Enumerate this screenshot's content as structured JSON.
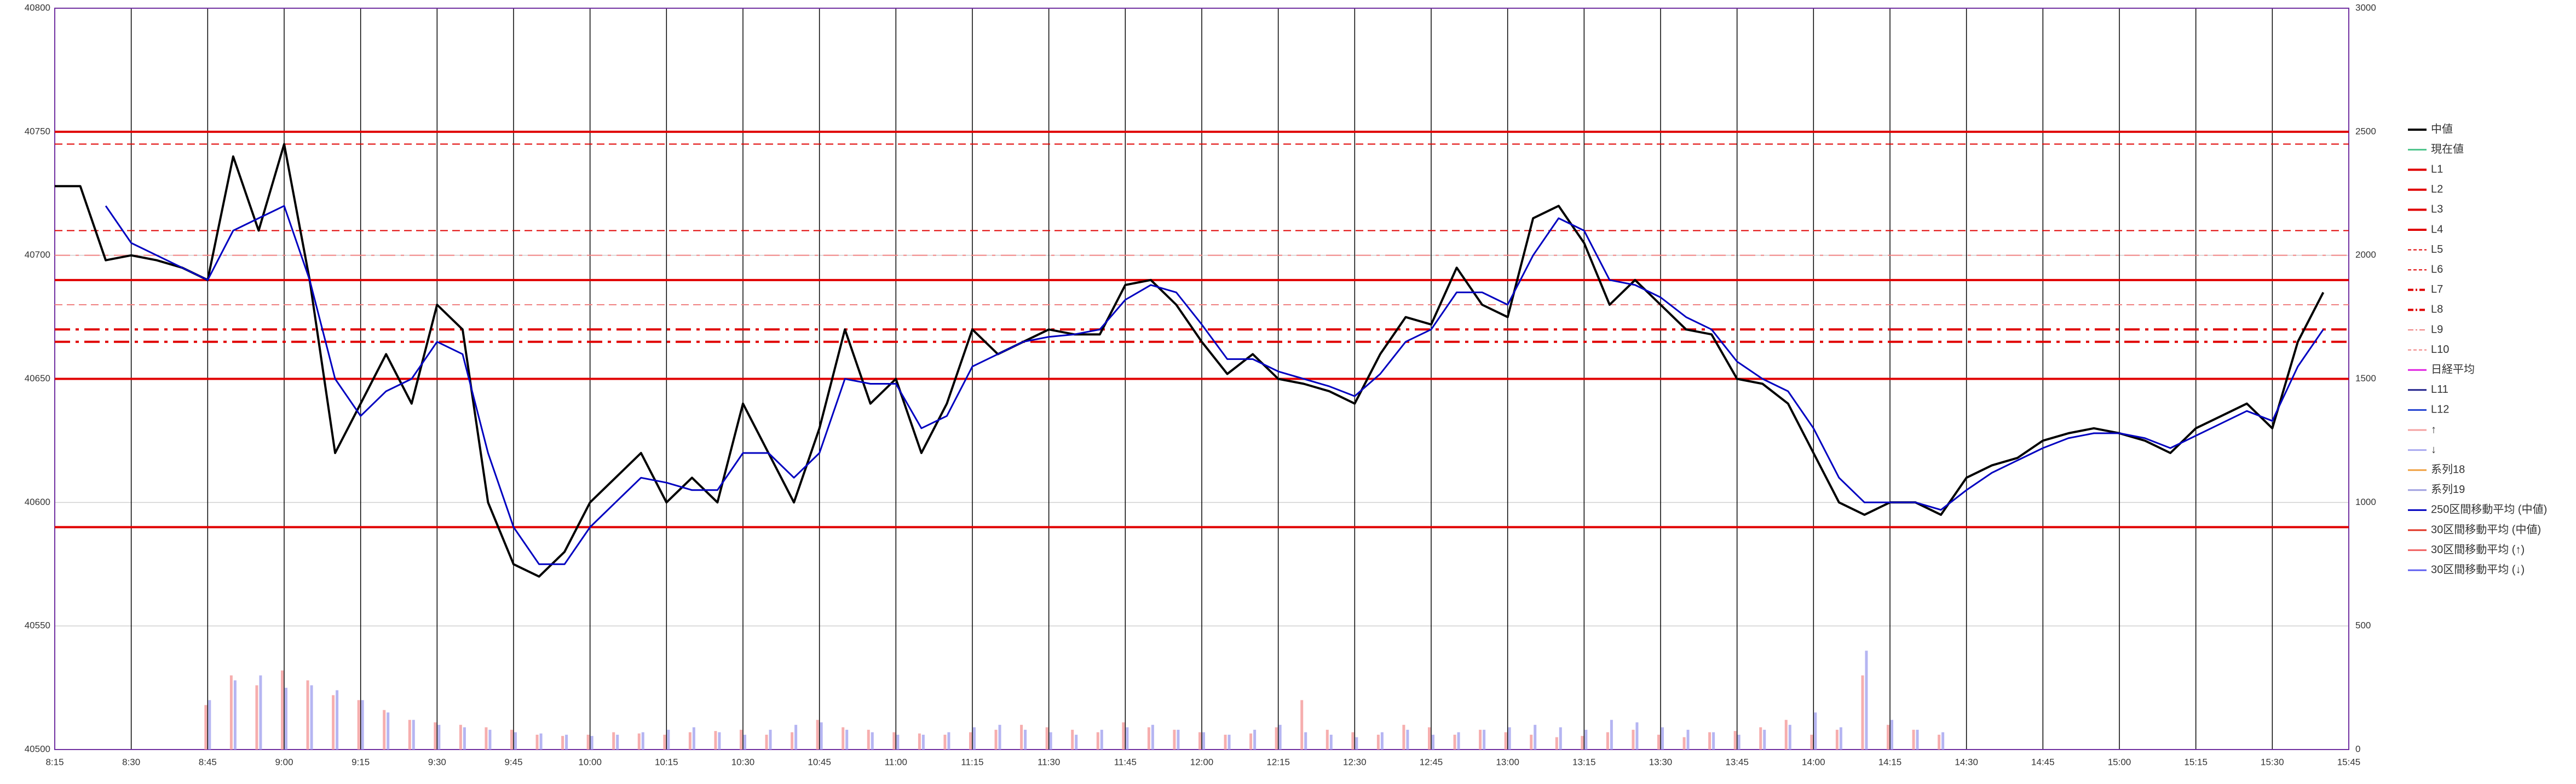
{
  "chart_data": {
    "type": "line",
    "x": [
      "8:15",
      "8:20",
      "8:25",
      "8:30",
      "8:35",
      "8:40",
      "8:45",
      "8:50",
      "8:55",
      "9:00",
      "9:05",
      "9:10",
      "9:15",
      "9:20",
      "9:25",
      "9:30",
      "9:35",
      "9:40",
      "9:45",
      "9:50",
      "9:55",
      "10:00",
      "10:05",
      "10:10",
      "10:15",
      "10:20",
      "10:25",
      "10:30",
      "10:35",
      "10:40",
      "10:45",
      "10:50",
      "10:55",
      "11:00",
      "11:05",
      "11:10",
      "11:15",
      "11:20",
      "11:25",
      "11:30",
      "11:35",
      "11:40",
      "11:45",
      "11:50",
      "11:55",
      "12:00",
      "12:05",
      "12:10",
      "12:15",
      "12:20",
      "12:25",
      "12:30",
      "12:35",
      "12:40",
      "12:45",
      "12:50",
      "12:55",
      "13:00",
      "13:05",
      "13:10",
      "13:15",
      "13:20",
      "13:25",
      "13:30",
      "13:35",
      "13:40",
      "13:45",
      "13:50",
      "13:55",
      "14:00",
      "14:05",
      "14:10",
      "14:15",
      "14:20",
      "14:25",
      "14:30",
      "14:35",
      "14:40",
      "14:45",
      "14:50",
      "14:55",
      "15:00",
      "15:05",
      "15:10",
      "15:15",
      "15:20",
      "15:25",
      "15:30",
      "15:35",
      "15:40",
      "15:45"
    ],
    "ylim": [
      40500,
      40800
    ],
    "yticks": [
      40500,
      40550,
      40600,
      40650,
      40700,
      40750,
      40800
    ],
    "y2lim": [
      0,
      3000
    ],
    "y2ticks": [
      0,
      500,
      1000,
      1500,
      2000,
      2500,
      3000
    ],
    "grid": true,
    "series": [
      {
        "name": "中値",
        "color": "#000000",
        "kind": "line",
        "width": 4,
        "values": [
          40728,
          40728,
          40698,
          40700,
          40698,
          40695,
          40690,
          40740,
          40710,
          40745,
          40690,
          40620,
          40640,
          40660,
          40640,
          40680,
          40670,
          40600,
          40575,
          40570,
          40580,
          40600,
          40610,
          40620,
          40600,
          40610,
          40600,
          40640,
          40620,
          40600,
          40630,
          40670,
          40640,
          40650,
          40620,
          40640,
          40670,
          40660,
          40665,
          40670,
          40668,
          40668,
          40688,
          40690,
          40680,
          40665,
          40652,
          40660,
          40650,
          40648,
          40645,
          40640,
          40660,
          40675,
          40672,
          40695,
          40680,
          40675,
          40715,
          40720,
          40705,
          40680,
          40690,
          40680,
          40670,
          40668,
          40650,
          40648,
          40640,
          40620,
          40600,
          40595,
          40600,
          40600,
          40595,
          40610,
          40615,
          40618,
          40625,
          40628,
          40630,
          40628,
          40625,
          40620,
          40630,
          40635,
          40640,
          40630,
          40665,
          40685,
          null
        ]
      },
      {
        "name": "現在値",
        "color": "#4cc38a",
        "kind": "line"
      },
      {
        "name": "L1",
        "color": "#e00000",
        "kind": "level",
        "level": 40750,
        "width": 4
      },
      {
        "name": "L2",
        "color": "#e00000",
        "kind": "level",
        "level": 40690,
        "width": 4
      },
      {
        "name": "L3",
        "color": "#e00000",
        "kind": "level",
        "level": 40650,
        "width": 4
      },
      {
        "name": "L4",
        "color": "#e00000",
        "kind": "level",
        "level": 40590,
        "width": 4
      },
      {
        "name": "L5",
        "color": "#e00000",
        "kind": "level",
        "level": 40745,
        "width": 2,
        "dash": "dashed"
      },
      {
        "name": "L6",
        "color": "#e00000",
        "kind": "level",
        "level": 40710,
        "width": 2,
        "dash": "dashed"
      },
      {
        "name": "L7",
        "color": "#e00000",
        "kind": "level",
        "level": 40670,
        "width": 4,
        "dash": "dashdot"
      },
      {
        "name": "L8",
        "color": "#e00000",
        "kind": "level",
        "level": 40665,
        "width": 4,
        "dash": "dashdot"
      },
      {
        "name": "L9",
        "color": "#f08080",
        "kind": "level",
        "level": 40700,
        "width": 2,
        "dash": "dashdot"
      },
      {
        "name": "L10",
        "color": "#f08080",
        "kind": "level",
        "level": 40680,
        "width": 2,
        "dash": "dashed"
      },
      {
        "name": "日経平均",
        "color": "#e020e0",
        "kind": "line"
      },
      {
        "name": "L11",
        "color": "#20208a",
        "kind": "level"
      },
      {
        "name": "L12",
        "color": "#2040d0",
        "kind": "level"
      },
      {
        "name": "↑",
        "color": "#f4a0a0",
        "kind": "bar",
        "axis": "y2",
        "values": [
          null,
          null,
          null,
          null,
          null,
          null,
          180,
          300,
          260,
          320,
          280,
          220,
          200,
          160,
          120,
          110,
          100,
          90,
          80,
          60,
          55,
          60,
          70,
          65,
          60,
          70,
          75,
          80,
          60,
          70,
          120,
          90,
          80,
          70,
          65,
          60,
          70,
          80,
          100,
          90,
          80,
          70,
          110,
          90,
          80,
          70,
          60,
          65,
          90,
          200,
          80,
          70,
          60,
          100,
          90,
          60,
          80,
          70,
          60,
          50,
          55,
          70,
          80,
          60,
          50,
          70,
          75,
          90,
          120,
          60,
          80,
          300,
          100,
          80,
          60,
          null,
          null,
          null,
          null,
          null,
          null,
          null,
          null,
          null,
          null,
          null,
          null,
          null,
          null,
          null,
          null
        ]
      },
      {
        "name": "↓",
        "color": "#a8a8f0",
        "kind": "bar",
        "axis": "y2",
        "values": [
          null,
          null,
          null,
          null,
          null,
          null,
          200,
          280,
          300,
          250,
          260,
          240,
          200,
          150,
          120,
          100,
          90,
          80,
          70,
          65,
          60,
          55,
          60,
          70,
          80,
          90,
          70,
          60,
          80,
          100,
          110,
          80,
          70,
          60,
          60,
          70,
          90,
          100,
          80,
          70,
          60,
          80,
          90,
          100,
          80,
          70,
          60,
          80,
          100,
          70,
          60,
          50,
          70,
          80,
          60,
          70,
          80,
          90,
          100,
          90,
          80,
          120,
          110,
          90,
          80,
          70,
          60,
          80,
          100,
          150,
          90,
          400,
          120,
          80,
          70,
          null,
          null,
          null,
          null,
          null,
          null,
          null,
          null,
          null,
          null,
          null,
          null,
          null,
          null,
          null,
          null
        ]
      },
      {
        "name": "系列18",
        "color": "#f0a040",
        "kind": "line"
      },
      {
        "name": "系列19",
        "color": "#a0a0e0",
        "kind": "line"
      },
      {
        "name": "250区間移動平均 (中値)",
        "color": "#0000c0",
        "kind": "line",
        "width": 3,
        "values": [
          null,
          null,
          40720,
          40705,
          40700,
          40695,
          40690,
          40710,
          40715,
          40720,
          40690,
          40650,
          40635,
          40645,
          40650,
          40665,
          40660,
          40620,
          40590,
          40575,
          40575,
          40590,
          40600,
          40610,
          40608,
          40605,
          40605,
          40620,
          40620,
          40610,
          40620,
          40650,
          40648,
          40648,
          40630,
          40635,
          40655,
          40660,
          40665,
          40667,
          40668,
          40670,
          40682,
          40688,
          40685,
          40672,
          40658,
          40658,
          40653,
          40650,
          40647,
          40643,
          40652,
          40665,
          40670,
          40685,
          40685,
          40680,
          40700,
          40715,
          40710,
          40690,
          40688,
          40683,
          40675,
          40670,
          40657,
          40650,
          40645,
          40630,
          40610,
          40600,
          40600,
          40600,
          40597,
          40605,
          40612,
          40617,
          40622,
          40626,
          40628,
          40628,
          40626,
          40622,
          40627,
          40632,
          40637,
          40633,
          40655,
          40670,
          null
        ]
      },
      {
        "name": "30区間移動平均 (中値)",
        "color": "#e03020",
        "kind": "line"
      },
      {
        "name": "30区間移動平均 (↑)",
        "color": "#f06060",
        "kind": "line"
      },
      {
        "name": "30区間移動平均 (↓)",
        "color": "#6060f0",
        "kind": "line"
      }
    ]
  }
}
